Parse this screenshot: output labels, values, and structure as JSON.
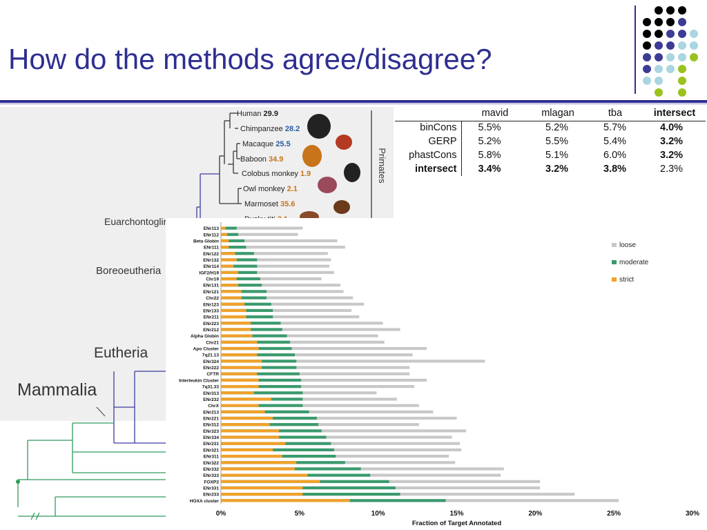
{
  "slide": {
    "title": "How do the methods agree/disagree?",
    "colors": {
      "title": "#2e2e91",
      "dot_black": "#000000",
      "dot_purple": "#3c3c96",
      "dot_lightblue": "#a9d6e0",
      "dot_green": "#99c21c"
    }
  },
  "tree": {
    "species": [
      {
        "name": "Human",
        "value": "29.9",
        "color": "#222222"
      },
      {
        "name": "Chimpanzee",
        "value": "28.2",
        "color": "#2a5aa6"
      },
      {
        "name": "Macaque",
        "value": "25.5",
        "color": "#2a5aa6"
      },
      {
        "name": "Baboon",
        "value": "34.9",
        "color": "#c8741a"
      },
      {
        "name": "Colobus monkey",
        "value": "1.9",
        "color": "#c8741a"
      },
      {
        "name": "Owl monkey",
        "value": "2.1",
        "color": "#c8741a"
      },
      {
        "name": "Marmoset",
        "value": "35.6",
        "color": "#c8741a"
      },
      {
        "name": "Dusky titi",
        "value": "3.1",
        "color": "#c8741a"
      }
    ],
    "group_label": "Primates",
    "clades": [
      "Euarchontoglires",
      "Boreoeutheria",
      "Eutheria",
      "Mammalia"
    ]
  },
  "agreement_table": {
    "columns": [
      "mavid",
      "mlagan",
      "tba",
      "intersect"
    ],
    "rows": [
      {
        "label": "binCons",
        "values": [
          "5.5%",
          "5.2%",
          "5.7%",
          "4.0%"
        ]
      },
      {
        "label": "GERP",
        "values": [
          "5.2%",
          "5.5%",
          "5.4%",
          "3.2%"
        ]
      },
      {
        "label": "phastCons",
        "values": [
          "5.8%",
          "5.1%",
          "6.0%",
          "3.2%"
        ]
      },
      {
        "label": "intersect",
        "values": [
          "3.4%",
          "3.2%",
          "3.8%",
          "2.3%"
        ]
      }
    ]
  },
  "chart_data": {
    "type": "bar",
    "orientation": "horizontal",
    "xlabel": "Fraction of Target Annotated",
    "xlim": [
      0,
      30
    ],
    "xticks": [
      "0%",
      "5%",
      "10%",
      "15%",
      "20%",
      "25%",
      "30%"
    ],
    "legend": {
      "placement": "top-right"
    },
    "categories": [
      "ENr113",
      "ENr112",
      "Beta Globin",
      "ENr111",
      "ENr122",
      "ENr132",
      "ENr114",
      "IGF2/H19",
      "Chr19",
      "ENr131",
      "ENr121",
      "Chr22",
      "ENr123",
      "ENr133",
      "ENr211",
      "ENr223",
      "ENr212",
      "Alpha Globin",
      "Chr21",
      "Apo Cluster",
      "7q21.13",
      "ENr324",
      "ENr222",
      "CFTR",
      "Interleukin Cluster",
      "7q31.33",
      "ENr313",
      "ENr232",
      "ChrX",
      "ENr213",
      "ENr221",
      "ENr312",
      "ENr323",
      "ENr334",
      "ENr231",
      "ENr321",
      "ENr311",
      "ENr322",
      "ENr332",
      "ENr333",
      "FOXP2",
      "ENr331",
      "ENr233",
      "HOXA cluster"
    ],
    "series": [
      {
        "name": "loose",
        "color": "#c8c8c8",
        "values": [
          5.2,
          4.9,
          7.4,
          7.9,
          6.8,
          7.0,
          6.9,
          7.2,
          6.4,
          7.6,
          7.8,
          8.4,
          9.1,
          8.3,
          8.8,
          10.3,
          11.4,
          10.0,
          10.4,
          13.1,
          12.2,
          16.8,
          12.0,
          12.0,
          13.1,
          12.3,
          9.9,
          11.2,
          12.6,
          13.5,
          15.0,
          12.6,
          15.6,
          14.7,
          15.2,
          15.3,
          14.5,
          14.9,
          18.0,
          17.8,
          20.3,
          20.3,
          22.5,
          25.3
        ]
      },
      {
        "name": "moderate",
        "color": "#3a9a6e",
        "values": [
          1.0,
          1.1,
          1.5,
          1.6,
          2.1,
          2.3,
          2.3,
          2.3,
          2.5,
          2.6,
          2.9,
          2.9,
          3.2,
          3.3,
          3.3,
          3.8,
          3.9,
          4.2,
          4.4,
          4.5,
          4.7,
          4.8,
          4.8,
          5.0,
          5.1,
          5.1,
          5.2,
          5.2,
          5.2,
          5.6,
          6.1,
          6.2,
          6.4,
          6.7,
          7.0,
          7.2,
          7.3,
          7.9,
          8.9,
          9.5,
          10.7,
          11.1,
          11.4,
          14.3
        ]
      },
      {
        "name": "strict",
        "color": "#f2a12a",
        "values": [
          0.3,
          0.4,
          0.5,
          0.5,
          0.9,
          1.0,
          0.8,
          1.1,
          1.0,
          1.1,
          1.3,
          1.3,
          1.5,
          1.6,
          1.6,
          1.9,
          1.9,
          2.0,
          2.3,
          2.4,
          2.3,
          2.6,
          2.6,
          2.3,
          2.4,
          2.4,
          2.1,
          3.2,
          2.4,
          2.8,
          3.3,
          3.1,
          3.7,
          3.7,
          4.1,
          3.3,
          3.9,
          4.8,
          4.7,
          5.5,
          6.3,
          5.2,
          5.2,
          8.2
        ]
      }
    ]
  }
}
